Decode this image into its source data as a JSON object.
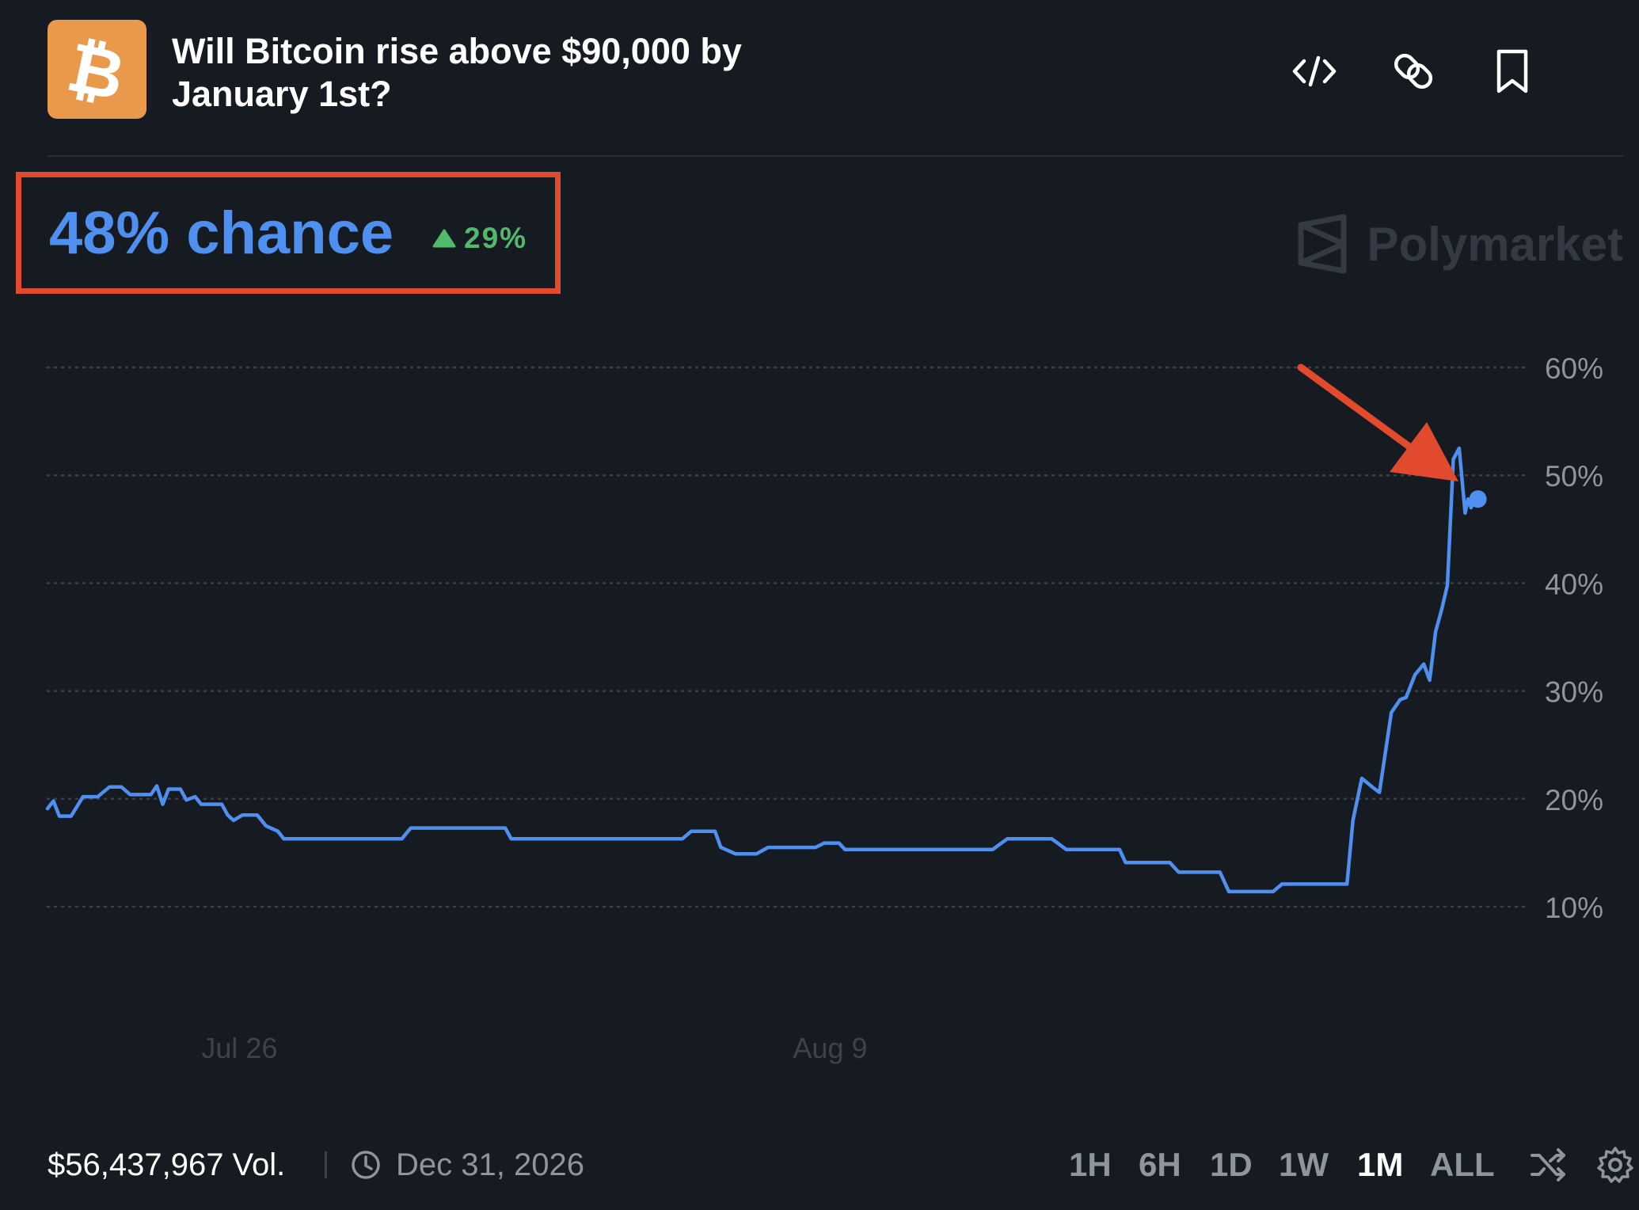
{
  "market": {
    "logo_icon": "bitcoin-icon",
    "title": "Will Bitcoin rise above $90,000 by January 1st?",
    "chance_text": "48% chance",
    "change_text": "29%",
    "change_direction": "up",
    "watermark": "Polymarket"
  },
  "header_icons": [
    "embed-code-icon",
    "link-icon",
    "bookmark-icon"
  ],
  "footer": {
    "volume": "$56,437,967 Vol.",
    "end_date": "Dec 31, 2026",
    "ranges": [
      "1H",
      "6H",
      "1D",
      "1W",
      "1M",
      "ALL"
    ],
    "active_range": "1M"
  },
  "colors": {
    "background": "#161a21",
    "line": "#4f8ff0",
    "up": "#52b86b",
    "annotation": "#e24a2d",
    "logo": "#e8994a"
  },
  "chart_data": {
    "type": "line",
    "series": [
      {
        "values": [
          [
            0,
            19.1
          ],
          [
            0.2,
            19.8
          ],
          [
            0.4,
            18.4
          ],
          [
            0.8,
            18.4
          ],
          [
            1.2,
            20.2
          ],
          [
            1.7,
            20.2
          ],
          [
            2.1,
            21.1
          ],
          [
            2.5,
            21.1
          ],
          [
            2.8,
            20.4
          ],
          [
            3.5,
            20.4
          ],
          [
            3.7,
            21.2
          ],
          [
            3.9,
            19.5
          ],
          [
            4.1,
            20.9
          ],
          [
            4.5,
            20.9
          ],
          [
            4.7,
            19.9
          ],
          [
            5.0,
            20.2
          ],
          [
            5.2,
            19.5
          ],
          [
            5.6,
            19.5
          ],
          [
            5.9,
            19.5
          ],
          [
            6.1,
            18.5
          ],
          [
            6.3,
            18.0
          ],
          [
            6.6,
            18.5
          ],
          [
            7.1,
            18.5
          ],
          [
            7.4,
            17.5
          ],
          [
            7.8,
            17.0
          ],
          [
            8.0,
            16.3
          ],
          [
            12.0,
            16.3
          ],
          [
            12.3,
            17.3
          ],
          [
            15.5,
            17.3
          ],
          [
            15.7,
            16.3
          ],
          [
            21.5,
            16.3
          ],
          [
            21.8,
            17.0
          ],
          [
            22.6,
            17.0
          ],
          [
            22.8,
            15.5
          ],
          [
            23.3,
            14.9
          ],
          [
            24.0,
            14.9
          ],
          [
            24.4,
            15.5
          ],
          [
            26.0,
            15.5
          ],
          [
            26.3,
            15.9
          ],
          [
            26.8,
            15.9
          ],
          [
            27.0,
            15.3
          ],
          [
            32.0,
            15.3
          ],
          [
            32.5,
            16.3
          ],
          [
            34.0,
            16.3
          ],
          [
            34.5,
            15.3
          ],
          [
            36.3,
            15.3
          ],
          [
            36.5,
            14.1
          ],
          [
            38.0,
            14.1
          ],
          [
            38.3,
            13.2
          ],
          [
            39.7,
            13.2
          ],
          [
            40.0,
            11.4
          ],
          [
            41.5,
            11.4
          ],
          [
            41.8,
            12.1
          ],
          [
            44.0,
            12.1
          ],
          [
            44.2,
            18.0
          ],
          [
            44.5,
            21.9
          ],
          [
            44.9,
            21.0
          ],
          [
            45.1,
            20.6
          ],
          [
            45.5,
            28.0
          ],
          [
            45.8,
            29.2
          ],
          [
            46.0,
            29.4
          ],
          [
            46.3,
            31.5
          ],
          [
            46.6,
            32.5
          ],
          [
            46.8,
            31.0
          ],
          [
            47.0,
            35.5
          ],
          [
            47.2,
            37.5
          ],
          [
            47.4,
            39.8
          ],
          [
            47.6,
            51.5
          ],
          [
            47.8,
            52.5
          ],
          [
            48.0,
            46.5
          ],
          [
            48.1,
            47.8
          ],
          [
            48.2,
            47.0
          ],
          [
            48.3,
            47.8
          ]
        ]
      }
    ],
    "x_tick_positions": [
      6.5,
      26.5
    ],
    "x_tick_labels": [
      "Jul 26",
      "Aug 9"
    ],
    "yticks": [
      10,
      20,
      30,
      40,
      50,
      60
    ],
    "ytick_labels": [
      "10%",
      "20%",
      "30%",
      "40%",
      "50%",
      "60%"
    ],
    "ylim": [
      7,
      62
    ],
    "grid": "horizontal dotted",
    "last_value": 47.8
  }
}
